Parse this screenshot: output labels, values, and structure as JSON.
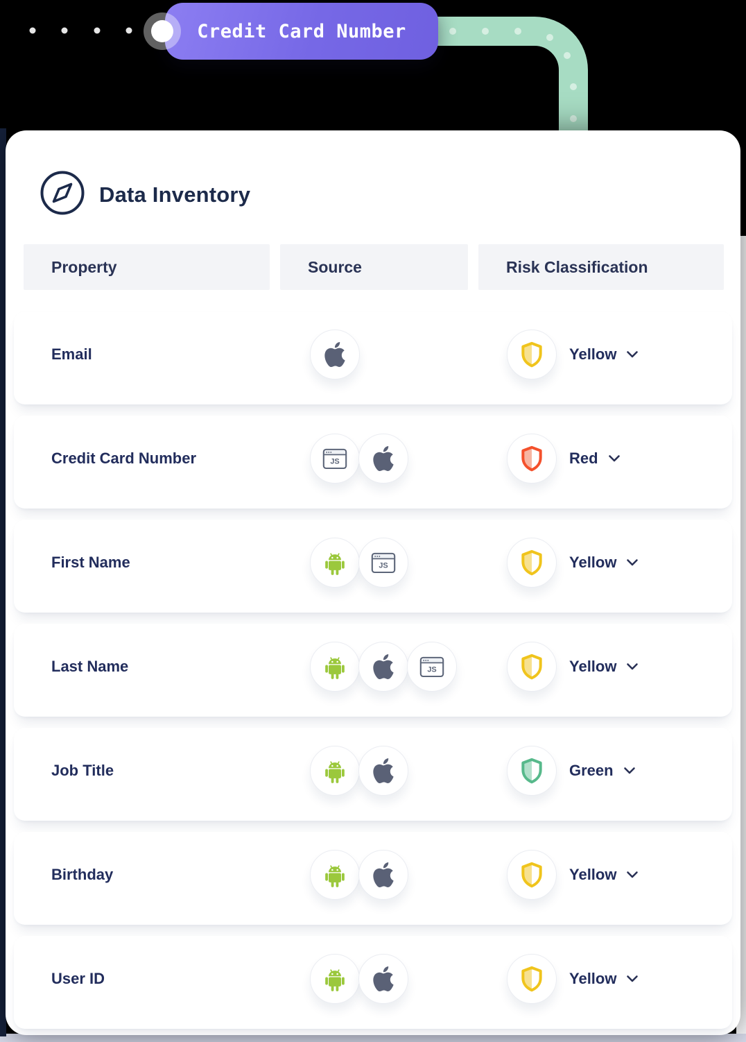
{
  "connector": {
    "label": "Credit Card Number",
    "ribbon_color": "#a7dcc3",
    "ribbon_dot_color": "#d6efe2",
    "pill_color_start": "#8c7ef2",
    "pill_color_end": "#6f60e0"
  },
  "header": {
    "title": "Data Inventory"
  },
  "table": {
    "columns": [
      "Property",
      "Source",
      "Risk Classification"
    ],
    "rows": [
      {
        "property": "Email",
        "sources": [
          "apple"
        ],
        "risk": "Yellow"
      },
      {
        "property": "Credit Card Number",
        "sources": [
          "js",
          "apple"
        ],
        "risk": "Red"
      },
      {
        "property": "First Name",
        "sources": [
          "android",
          "js"
        ],
        "risk": "Yellow"
      },
      {
        "property": "Last Name",
        "sources": [
          "android",
          "apple",
          "js"
        ],
        "risk": "Yellow"
      },
      {
        "property": "Job Title",
        "sources": [
          "android",
          "apple"
        ],
        "risk": "Green"
      },
      {
        "property": "Birthday",
        "sources": [
          "android",
          "apple"
        ],
        "risk": "Yellow"
      },
      {
        "property": "User ID",
        "sources": [
          "android",
          "apple"
        ],
        "risk": "Yellow"
      }
    ]
  },
  "risk_levels": {
    "yellow": {
      "label": "Yellow",
      "stroke": "#f0c41c",
      "fill": "#f7e190"
    },
    "red": {
      "label": "Red",
      "stroke": "#f4512c",
      "fill": "#f7b5a2"
    },
    "green": {
      "label": "Green",
      "stroke": "#57b98b",
      "fill": "#b2e0cb"
    }
  },
  "source_icon_names": {
    "apple": "apple-icon",
    "android": "android-icon",
    "js": "js-browser-icon"
  },
  "colors": {
    "text_navy": "#222d5c",
    "title_navy": "#1c2a4a",
    "header_bg": "#f3f4f7",
    "android_green": "#9bc83c",
    "apple_gray": "#5a6176",
    "js_slate": "#5d6679",
    "chevron_navy": "#2a3155"
  }
}
